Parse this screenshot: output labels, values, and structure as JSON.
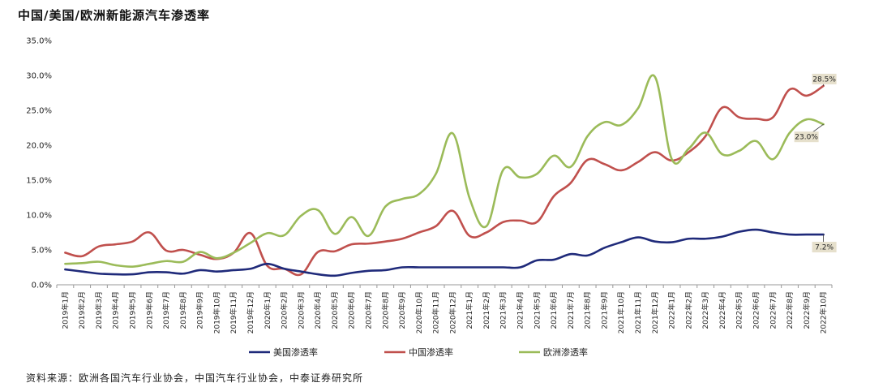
{
  "chart_title": "中国/美国/欧洲新能源汽车渗透率",
  "source_note": "资料来源：欧洲各国汽车行业协会，中国汽车行业协会，中泰证券研究所",
  "chart_data": {
    "type": "line",
    "title": "中国/美国/欧洲新能源汽车渗透率",
    "xlabel": "",
    "ylabel": "",
    "ylim": [
      0,
      35
    ],
    "yticks": [
      "0.0%",
      "5.0%",
      "10.0%",
      "15.0%",
      "20.0%",
      "25.0%",
      "30.0%",
      "35.0%"
    ],
    "grid": false,
    "legend_position": "bottom",
    "x": [
      "2019年1月",
      "2019年2月",
      "2019年3月",
      "2019年4月",
      "2019年5月",
      "2019年6月",
      "2019年7月",
      "2019年8月",
      "2019年9月",
      "2019年10月",
      "2019年11月",
      "2019年12月",
      "2020年1月",
      "2020年2月",
      "2020年3月",
      "2020年4月",
      "2020年5月",
      "2020年6月",
      "2020年7月",
      "2020年8月",
      "2020年9月",
      "2020年10月",
      "2020年11月",
      "2020年12月",
      "2021年1月",
      "2021年2月",
      "2021年3月",
      "2021年4月",
      "2021年5月",
      "2021年6月",
      "2021年7月",
      "2021年8月",
      "2021年9月",
      "2021年10月",
      "2021年11月",
      "2021年12月",
      "2022年1月",
      "2022年2月",
      "2022年3月",
      "2022年4月",
      "2022年5月",
      "2022年6月",
      "2022年7月",
      "2022年8月",
      "2022年9月",
      "2022年10月"
    ],
    "series": [
      {
        "name": "美国渗透率",
        "color": "#1f2a7a",
        "values": [
          2.2,
          1.9,
          1.6,
          1.5,
          1.5,
          1.8,
          1.8,
          1.6,
          2.1,
          1.9,
          2.1,
          2.3,
          3.0,
          2.3,
          1.9,
          1.5,
          1.3,
          1.7,
          2.0,
          2.1,
          2.5,
          2.5,
          2.5,
          2.5,
          2.5,
          2.5,
          2.5,
          2.5,
          3.5,
          3.6,
          4.4,
          4.2,
          5.3,
          6.1,
          6.8,
          6.2,
          6.1,
          6.6,
          6.6,
          6.9,
          7.6,
          7.9,
          7.5,
          7.2,
          7.2,
          7.2
        ],
        "end_label": "7.2%"
      },
      {
        "name": "中国渗透率",
        "color": "#c0504d",
        "values": [
          4.6,
          4.1,
          5.5,
          5.8,
          6.2,
          7.5,
          4.9,
          5.0,
          4.3,
          3.7,
          4.6,
          7.4,
          2.7,
          2.3,
          1.5,
          4.7,
          4.8,
          5.8,
          5.9,
          6.2,
          6.6,
          7.5,
          8.4,
          10.6,
          7.0,
          7.5,
          9.0,
          9.2,
          9.0,
          12.7,
          14.6,
          17.9,
          17.3,
          16.4,
          17.6,
          19.0,
          17.8,
          19.0,
          21.3,
          25.4,
          24.0,
          23.8,
          24.0,
          28.0,
          27.1,
          28.5
        ],
        "end_label": "28.5%"
      },
      {
        "name": "欧洲渗透率",
        "color": "#9bbb59",
        "values": [
          3.0,
          3.1,
          3.3,
          2.8,
          2.6,
          3.0,
          3.4,
          3.3,
          4.7,
          3.8,
          4.6,
          6.0,
          7.4,
          7.1,
          9.9,
          10.7,
          7.3,
          9.7,
          7.0,
          11.2,
          12.3,
          13.0,
          15.9,
          21.7,
          12.4,
          8.4,
          16.5,
          15.4,
          15.9,
          18.5,
          16.9,
          21.3,
          23.3,
          22.9,
          25.3,
          29.8,
          18.0,
          19.5,
          21.8,
          18.7,
          19.2,
          20.6,
          18.0,
          21.8,
          23.7,
          23.0
        ],
        "end_label": "23.0%"
      }
    ]
  }
}
